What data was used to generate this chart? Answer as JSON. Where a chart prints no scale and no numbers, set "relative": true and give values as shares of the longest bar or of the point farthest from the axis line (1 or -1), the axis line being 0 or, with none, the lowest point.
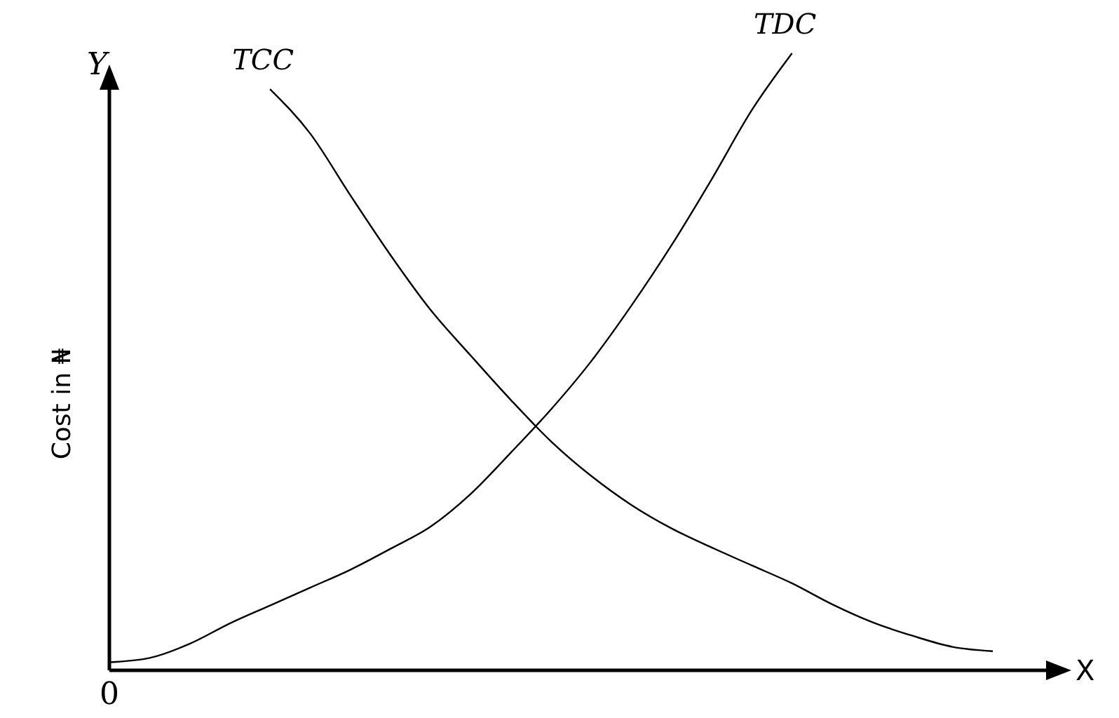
{
  "chart_data": {
    "type": "line",
    "relative": true,
    "xlabel": "X",
    "ylabel": "Cost in ₦",
    "annotations": [
      "Y",
      "0"
    ],
    "categories": [
      null,
      null,
      null,
      null,
      null,
      null,
      null,
      null,
      null,
      null,
      null,
      null,
      null,
      null,
      null,
      null,
      null,
      null,
      null,
      null,
      null,
      null,
      null
    ],
    "marker": "none",
    "line_style": "solid",
    "series": [
      {
        "name": "TCC",
        "color": "#000000",
        "values": [
          null,
          null,
          null,
          null,
          0.942,
          0.87,
          0.77,
          0.673,
          0.584,
          0.51,
          0.438,
          0.371,
          0.315,
          0.268,
          0.23,
          0.199,
          0.17,
          0.141,
          0.107,
          0.078,
          0.056,
          0.038,
          0.031
        ]
      },
      {
        "name": "TDC",
        "color": "#000000",
        "values": [
          0.013,
          0.02,
          0.043,
          0.076,
          0.105,
          0.134,
          0.163,
          0.197,
          0.233,
          0.286,
          0.353,
          0.423,
          0.501,
          0.591,
          0.689,
          0.796,
          0.908,
          1,
          null,
          null,
          null,
          null,
          null
        ]
      }
    ]
  }
}
